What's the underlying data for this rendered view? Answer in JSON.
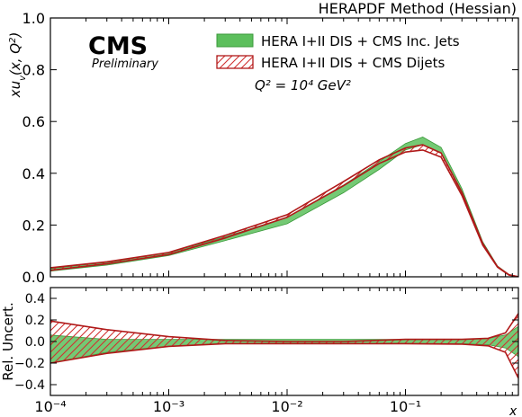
{
  "figure": {
    "method_label": "HERAPDF Method (Hessian)",
    "cms_logo": "CMS",
    "cms_subtitle": "Preliminary",
    "scale_label": "Q² = 10⁴ GeV²",
    "legend_position": "top-right"
  },
  "colors": {
    "inc_jets_fill": "#5cbf5c",
    "inc_jets_edge": "#3a9a3a",
    "dijets_edge": "#b01a1a",
    "dijets_hatch": "#d03030"
  },
  "chart_data": [
    {
      "type": "area",
      "panel": "main",
      "xlabel": "x",
      "ylabel": "xu_v(x, Q²)",
      "xscale": "log",
      "xlim": [
        0.0001,
        0.9
      ],
      "ylim": [
        0,
        1.0
      ],
      "x_tick_labels": [
        "10⁻⁴",
        "10⁻³",
        "10⁻²",
        "10⁻¹"
      ],
      "y_ticks": [
        "0.0",
        "0.2",
        "0.4",
        "0.6",
        "0.8",
        "1.0"
      ],
      "grid": false,
      "x": [
        0.0001,
        0.0003,
        0.001,
        0.003,
        0.01,
        0.03,
        0.06,
        0.1,
        0.14,
        0.2,
        0.3,
        0.45,
        0.6,
        0.75,
        0.9
      ],
      "series": [
        {
          "name": "HERA I+II DIS + CMS Inc. Jets",
          "style": "filled band",
          "center": [
            0.027,
            0.05,
            0.088,
            0.15,
            0.22,
            0.34,
            0.43,
            0.5,
            0.525,
            0.49,
            0.33,
            0.13,
            0.04,
            0.008,
            0.0005
          ],
          "upper": [
            0.032,
            0.056,
            0.093,
            0.155,
            0.23,
            0.355,
            0.445,
            0.515,
            0.54,
            0.5,
            0.34,
            0.135,
            0.042,
            0.009,
            0.0006
          ],
          "lower": [
            0.022,
            0.045,
            0.082,
            0.14,
            0.205,
            0.325,
            0.415,
            0.49,
            0.51,
            0.48,
            0.32,
            0.125,
            0.038,
            0.007,
            0.0004
          ]
        },
        {
          "name": "HERA I+II DIS + CMS Dijets",
          "style": "hatched band",
          "center": [
            0.03,
            0.054,
            0.09,
            0.155,
            0.235,
            0.36,
            0.445,
            0.49,
            0.5,
            0.47,
            0.32,
            0.125,
            0.038,
            0.007,
            0.0004
          ],
          "upper": [
            0.035,
            0.058,
            0.094,
            0.16,
            0.24,
            0.368,
            0.452,
            0.498,
            0.51,
            0.478,
            0.326,
            0.128,
            0.039,
            0.0075,
            0.0005
          ],
          "lower": [
            0.025,
            0.05,
            0.086,
            0.15,
            0.23,
            0.352,
            0.438,
            0.482,
            0.49,
            0.462,
            0.314,
            0.122,
            0.037,
            0.0065,
            0.0003
          ]
        }
      ]
    },
    {
      "type": "area",
      "panel": "ratio",
      "xlabel": "x",
      "ylabel": "Rel. Uncert.",
      "xscale": "log",
      "xlim": [
        0.0001,
        0.9
      ],
      "ylim": [
        -0.5,
        0.5
      ],
      "y_ticks": [
        "−0.4",
        "−0.2",
        "0.0",
        "0.2",
        "0.4"
      ],
      "grid": false,
      "x": [
        0.0001,
        0.0003,
        0.001,
        0.003,
        0.01,
        0.03,
        0.1,
        0.3,
        0.5,
        0.7,
        0.9
      ],
      "series": [
        {
          "name": "HERA I+II DIS + CMS Inc. Jets",
          "style": "filled band",
          "upper": [
            0.06,
            0.02,
            0.02,
            0.02,
            0.02,
            0.02,
            0.02,
            0.02,
            0.03,
            0.06,
            0.14
          ],
          "lower": [
            -0.2,
            -0.1,
            -0.045,
            -0.02,
            -0.02,
            -0.02,
            -0.02,
            -0.02,
            -0.03,
            -0.06,
            -0.14
          ]
        },
        {
          "name": "HERA I+II DIS + CMS Dijets",
          "style": "hatched band",
          "upper": [
            0.19,
            0.11,
            0.045,
            0.01,
            0.0,
            0.0,
            0.02,
            0.02,
            0.03,
            0.08,
            0.26
          ],
          "lower": [
            -0.2,
            -0.11,
            -0.045,
            -0.02,
            -0.02,
            -0.02,
            -0.02,
            -0.025,
            -0.04,
            -0.1,
            -0.34
          ]
        }
      ]
    }
  ]
}
